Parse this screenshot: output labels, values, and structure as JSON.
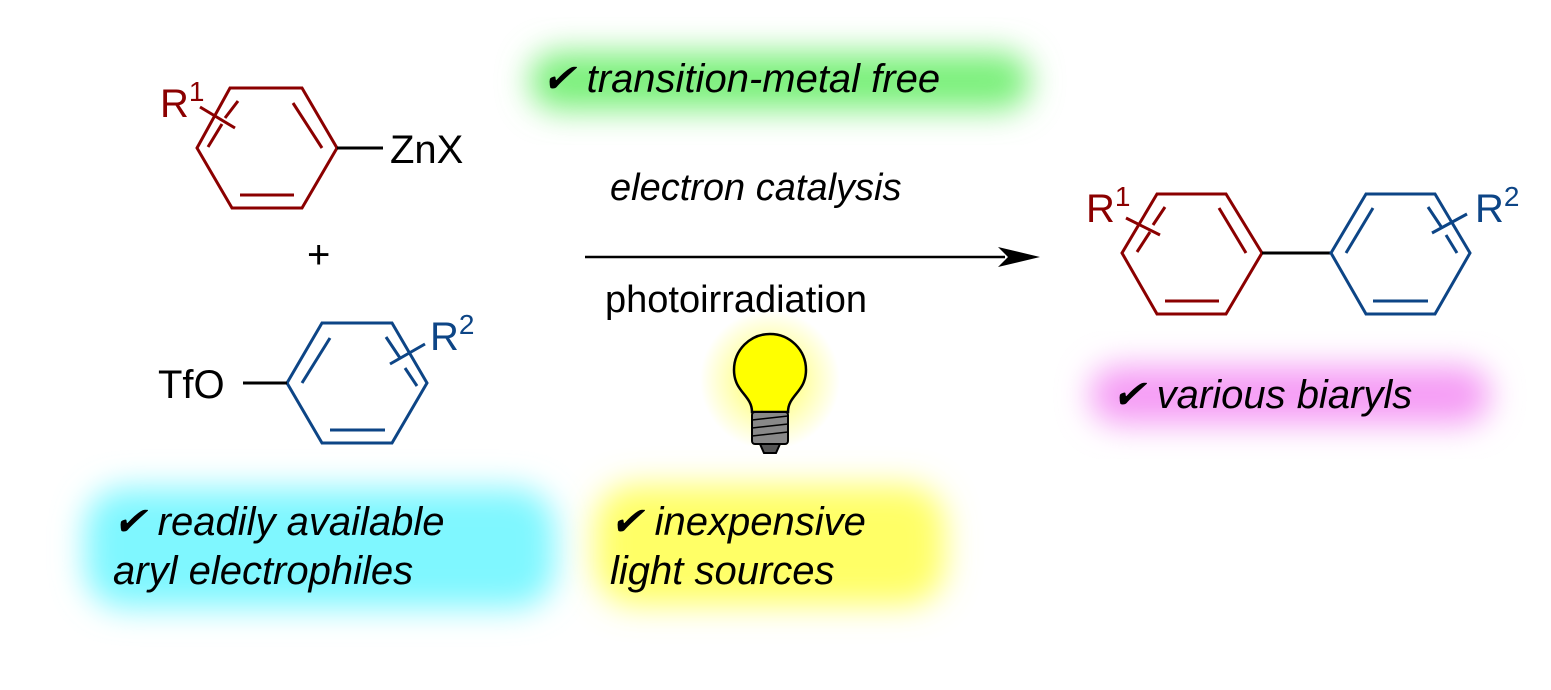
{
  "reactant1": {
    "substituent": "R",
    "substituent_sup": "1",
    "group": "ZnX"
  },
  "plus": "+",
  "reactant2": {
    "group": "TfO",
    "substituent": "R",
    "substituent_sup": "2"
  },
  "product": {
    "left_sub": "R",
    "left_sup": "1",
    "right_sub": "R",
    "right_sup": "2"
  },
  "conditions": {
    "above": "electron catalysis",
    "below": "photoirradiation"
  },
  "features": {
    "metal_free": "✔ transition-metal free",
    "biaryls": "✔ various biaryls",
    "electrophiles_line1": "✔ readily available",
    "electrophiles_line2": "aryl electrophiles",
    "light_line1": "✔ inexpensive",
    "light_line2": "light sources"
  },
  "colors": {
    "red_ring": "#8b0000",
    "blue_ring": "#0d4586",
    "green_glow": "#7cf07c",
    "cyan_glow": "#7ff7ff",
    "yellow_glow": "#ffff66",
    "magenta_glow": "#f59cf5",
    "bulb": "#ffff00"
  },
  "icons": {
    "bulb": "light-bulb-icon",
    "arrow": "reaction-arrow"
  }
}
